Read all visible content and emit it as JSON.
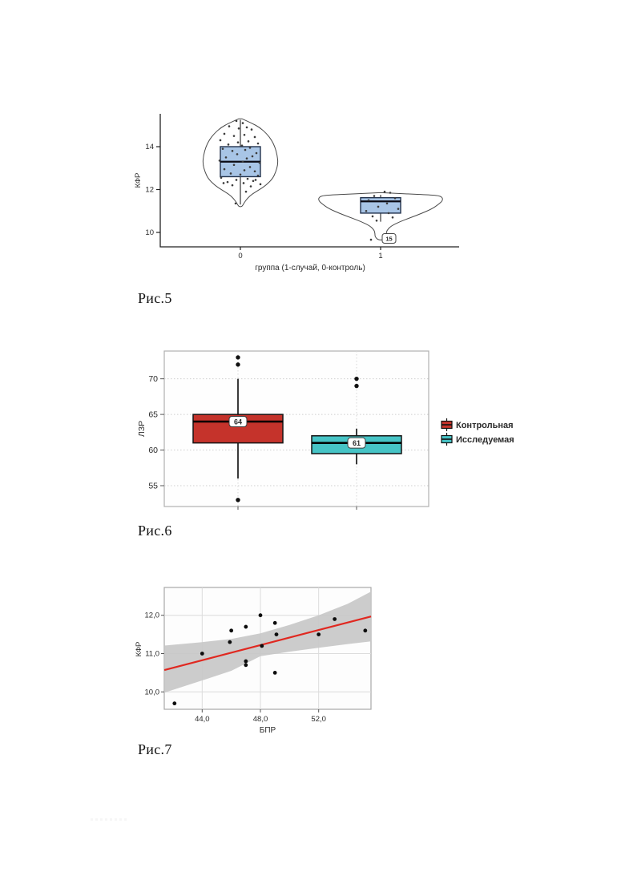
{
  "page": {
    "background": "#ffffff"
  },
  "chart_data": [
    {
      "type": "violin-box",
      "caption": "Рис.5",
      "ylabel": "КФР",
      "xlabel": "группа (1-случай, 0-контроль)",
      "yticks": [
        10,
        12,
        14
      ],
      "ylim": [
        9.45,
        15.6
      ],
      "categories": [
        "0",
        "1"
      ],
      "box_fill": "#a8c5e6",
      "box_stroke": "#22324d",
      "violin_stroke": "#4a4a4a",
      "groups": [
        {
          "category": "0",
          "box": {
            "q1": 12.6,
            "median": 13.3,
            "q3": 14.0
          },
          "whisker_hi": 15.25,
          "whisker_lo": 11.3,
          "violin_profile": [
            [
              15.3,
              2
            ],
            [
              15.1,
              14
            ],
            [
              14.9,
              24
            ],
            [
              14.6,
              33
            ],
            [
              14.3,
              39
            ],
            [
              14.0,
              43
            ],
            [
              13.6,
              46
            ],
            [
              13.2,
              47
            ],
            [
              12.8,
              44
            ],
            [
              12.5,
              40
            ],
            [
              12.2,
              32
            ],
            [
              12.0,
              24
            ],
            [
              11.8,
              15
            ],
            [
              11.6,
              9
            ],
            [
              11.4,
              5
            ],
            [
              11.2,
              2
            ]
          ],
          "jitter": [
            [
              -5,
              15.2
            ],
            [
              3,
              15.1
            ],
            [
              -14,
              14.95
            ],
            [
              8,
              14.9
            ],
            [
              -2,
              14.85
            ],
            [
              14,
              14.8
            ],
            [
              -20,
              14.6
            ],
            [
              5,
              14.55
            ],
            [
              -8,
              14.5
            ],
            [
              18,
              14.45
            ],
            [
              -25,
              14.3
            ],
            [
              10,
              14.25
            ],
            [
              -3,
              14.2
            ],
            [
              22,
              14.15
            ],
            [
              -15,
              14.1
            ],
            [
              2,
              14.05
            ],
            [
              12,
              13.95
            ],
            [
              -22,
              13.9
            ],
            [
              6,
              13.85
            ],
            [
              -10,
              13.8
            ],
            [
              20,
              13.7
            ],
            [
              -4,
              13.65
            ],
            [
              15,
              13.55
            ],
            [
              -18,
              13.5
            ],
            [
              8,
              13.45
            ],
            [
              -26,
              13.35
            ],
            [
              3,
              13.3
            ],
            [
              24,
              13.25
            ],
            [
              -8,
              13.15
            ],
            [
              12,
              13.05
            ],
            [
              -20,
              12.95
            ],
            [
              5,
              12.9
            ],
            [
              18,
              12.85
            ],
            [
              -12,
              12.75
            ],
            [
              0,
              12.7
            ],
            [
              22,
              12.65
            ],
            [
              -24,
              12.55
            ],
            [
              9,
              12.5
            ],
            [
              -5,
              12.45
            ],
            [
              16,
              12.4
            ],
            [
              -16,
              12.35
            ],
            [
              4,
              12.3
            ],
            [
              25,
              12.25
            ],
            [
              -10,
              12.2
            ],
            [
              13,
              12.15
            ],
            [
              -21,
              12.3
            ],
            [
              19,
              12.45
            ],
            [
              7,
              11.9
            ],
            [
              -6,
              11.35
            ]
          ]
        },
        {
          "category": "1",
          "box": {
            "q1": 10.9,
            "median": 11.45,
            "q3": 11.62
          },
          "whisker_hi": 11.75,
          "whisker_lo": 10.5,
          "violin_profile": [
            [
              11.85,
              3
            ],
            [
              11.8,
              30
            ],
            [
              11.75,
              62
            ],
            [
              11.7,
              76
            ],
            [
              11.5,
              78
            ],
            [
              11.3,
              72
            ],
            [
              11.1,
              64
            ],
            [
              10.9,
              52
            ],
            [
              10.7,
              38
            ],
            [
              10.5,
              24
            ],
            [
              10.3,
              13
            ],
            [
              10.1,
              8
            ],
            [
              9.95,
              7
            ],
            [
              9.8,
              7
            ],
            [
              9.65,
              3
            ]
          ],
          "jitter": [
            [
              5,
              11.9
            ],
            [
              12,
              11.85
            ],
            [
              -8,
              11.7
            ],
            [
              18,
              11.6
            ],
            [
              -15,
              11.5
            ],
            [
              8,
              11.35
            ],
            [
              -3,
              11.2
            ],
            [
              22,
              11.1
            ],
            [
              -18,
              11.0
            ],
            [
              10,
              10.9
            ],
            [
              -10,
              10.75
            ],
            [
              15,
              10.7
            ],
            [
              -5,
              10.55
            ],
            [
              -12,
              9.66
            ]
          ],
          "outlier_label": "15",
          "outlier_label_value": 9.72
        }
      ]
    },
    {
      "type": "box",
      "caption": "Рис.6",
      "ylabel": "ЛЗР",
      "yticks": [
        55,
        60,
        65,
        70
      ],
      "ylim": [
        51.8,
        74.2
      ],
      "grid": true,
      "series": [
        {
          "name": "Контрольная",
          "color": "#c5332b",
          "q1": 61,
          "median": 64,
          "q3": 65,
          "whisker_lo": 56,
          "whisker_hi": 70,
          "outliers": [
            72,
            73,
            53
          ],
          "median_label": "64"
        },
        {
          "name": "Исследуемая",
          "color": "#46c4c6",
          "q1": 59.5,
          "median": 61,
          "q3": 62,
          "whisker_lo": 58,
          "whisker_hi": 63,
          "outliers": [
            69,
            70
          ],
          "median_label": "61"
        }
      ],
      "legend_position": "right"
    },
    {
      "type": "scatter",
      "caption": "Рис.7",
      "xlabel": "БПР",
      "ylabel": "КФР",
      "xticks": [
        {
          "v": 44,
          "label": "44,0"
        },
        {
          "v": 48,
          "label": "48,0"
        },
        {
          "v": 52,
          "label": "52,0"
        }
      ],
      "yticks": [
        {
          "v": 10,
          "label": "10,0"
        },
        {
          "v": 11,
          "label": "11,0"
        },
        {
          "v": 12,
          "label": "12,0"
        }
      ],
      "xlim": [
        41.4,
        55.6
      ],
      "ylim": [
        9.55,
        12.75
      ],
      "grid": true,
      "points": [
        [
          42.1,
          9.7
        ],
        [
          44.0,
          11.0
        ],
        [
          46.0,
          11.6
        ],
        [
          45.9,
          11.3
        ],
        [
          47.0,
          11.7
        ],
        [
          47.0,
          10.8
        ],
        [
          47.0,
          10.7
        ],
        [
          48.0,
          12.0
        ],
        [
          48.1,
          11.2
        ],
        [
          49.0,
          11.8
        ],
        [
          49.1,
          11.5
        ],
        [
          49.0,
          10.5
        ],
        [
          52.0,
          11.5
        ],
        [
          53.1,
          11.9
        ],
        [
          55.2,
          11.6
        ]
      ],
      "regression": {
        "x1": 41.4,
        "y1": 10.57,
        "x2": 55.6,
        "y2": 11.97,
        "color": "#e02820"
      },
      "band_color": "#c6c6c6",
      "band": [
        [
          41.4,
          9.98,
          11.21
        ],
        [
          44,
          10.3,
          11.3
        ],
        [
          46,
          10.55,
          11.38
        ],
        [
          48,
          10.93,
          11.53
        ],
        [
          50,
          11.05,
          11.75
        ],
        [
          52,
          11.15,
          12.0
        ],
        [
          54,
          11.25,
          12.3
        ],
        [
          55.6,
          11.32,
          12.62
        ]
      ]
    }
  ]
}
